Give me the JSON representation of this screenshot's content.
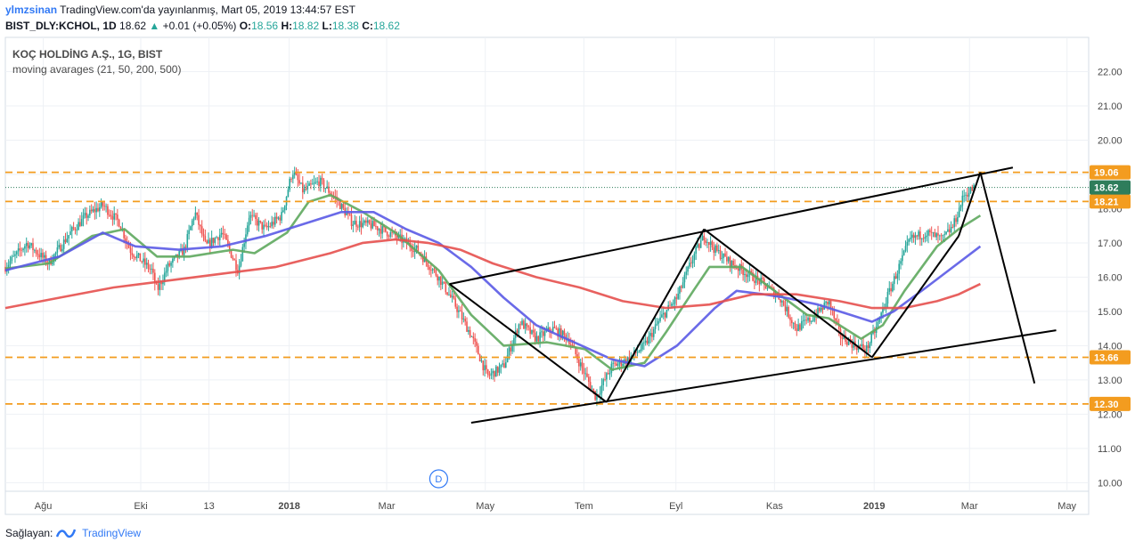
{
  "header": {
    "user": "ylmzsinan",
    "published": "TradingView.com'da yayınlanmış, Mart 05, 2019 13:44:57 EST",
    "symbol": "BIST_DLY:KCHOL, 1D",
    "last": "18.62",
    "change": "+0.01 (+0.05%)",
    "o_label": "O:",
    "o": "18.56",
    "h_label": "H:",
    "h": "18.82",
    "l_label": "L:",
    "l": "18.38",
    "c_label": "C:",
    "c": "18.62"
  },
  "legend": {
    "title": "KOÇ HOLDİNG A.Ş., 1G, BIST",
    "indicator": "moving avarages (21, 50, 200, 500)"
  },
  "footer": {
    "label": "Sağlayan:",
    "brand": "TradingView"
  },
  "colors": {
    "up": "#26a69a",
    "down": "#ef5350",
    "ma21": "#5ea85e",
    "ma50": "#5a5ae6",
    "ma200": "#e6504e",
    "level": "#f39c1f",
    "price_tag": "#2e7d5b",
    "trend": "#000000"
  },
  "chart_data": {
    "type": "candlestick",
    "y_axis": {
      "range": [
        9.75,
        23.0
      ],
      "ticks": [
        "10.00",
        "11.00",
        "12.00",
        "13.00",
        "14.00",
        "15.00",
        "16.00",
        "17.00",
        "18.00",
        "19.00",
        "20.00",
        "21.00",
        "22.00"
      ]
    },
    "x_axis": {
      "labels": [
        {
          "t": 0.035,
          "label": "Ağu",
          "bold": false
        },
        {
          "t": 0.125,
          "label": "Eki",
          "bold": false
        },
        {
          "t": 0.188,
          "label": "13",
          "bold": false
        },
        {
          "t": 0.262,
          "label": "2018",
          "bold": true
        },
        {
          "t": 0.352,
          "label": "Mar",
          "bold": false
        },
        {
          "t": 0.443,
          "label": "May",
          "bold": false
        },
        {
          "t": 0.534,
          "label": "Tem",
          "bold": false
        },
        {
          "t": 0.619,
          "label": "Eyl",
          "bold": false
        },
        {
          "t": 0.71,
          "label": "Kas",
          "bold": false
        },
        {
          "t": 0.802,
          "label": "2019",
          "bold": true
        },
        {
          "t": 0.89,
          "label": "Mar",
          "bold": false
        },
        {
          "t": 0.98,
          "label": "May",
          "bold": false
        }
      ]
    },
    "price_path": [
      [
        0.0,
        16.3
      ],
      [
        0.02,
        17.0
      ],
      [
        0.04,
        16.4
      ],
      [
        0.06,
        17.3
      ],
      [
        0.075,
        17.8
      ],
      [
        0.09,
        18.1
      ],
      [
        0.105,
        17.6
      ],
      [
        0.115,
        16.8
      ],
      [
        0.125,
        16.5
      ],
      [
        0.135,
        16.2
      ],
      [
        0.14,
        15.6
      ],
      [
        0.15,
        16.3
      ],
      [
        0.165,
        16.8
      ],
      [
        0.175,
        17.9
      ],
      [
        0.185,
        16.9
      ],
      [
        0.2,
        17.3
      ],
      [
        0.215,
        16.2
      ],
      [
        0.225,
        17.8
      ],
      [
        0.24,
        17.4
      ],
      [
        0.255,
        17.8
      ],
      [
        0.265,
        19.1
      ],
      [
        0.275,
        18.5
      ],
      [
        0.29,
        18.8
      ],
      [
        0.305,
        18.3
      ],
      [
        0.32,
        17.6
      ],
      [
        0.34,
        17.5
      ],
      [
        0.36,
        17.2
      ],
      [
        0.38,
        16.8
      ],
      [
        0.4,
        16.0
      ],
      [
        0.415,
        15.2
      ],
      [
        0.43,
        14.3
      ],
      [
        0.445,
        13.1
      ],
      [
        0.46,
        13.4
      ],
      [
        0.475,
        14.7
      ],
      [
        0.49,
        14.2
      ],
      [
        0.505,
        14.5
      ],
      [
        0.52,
        14.2
      ],
      [
        0.53,
        13.5
      ],
      [
        0.545,
        12.5
      ],
      [
        0.56,
        13.4
      ],
      [
        0.575,
        13.6
      ],
      [
        0.59,
        14.0
      ],
      [
        0.605,
        14.8
      ],
      [
        0.62,
        15.4
      ],
      [
        0.635,
        16.6
      ],
      [
        0.645,
        17.2
      ],
      [
        0.655,
        16.8
      ],
      [
        0.67,
        16.4
      ],
      [
        0.685,
        16.1
      ],
      [
        0.7,
        15.8
      ],
      [
        0.715,
        15.4
      ],
      [
        0.73,
        14.5
      ],
      [
        0.745,
        14.8
      ],
      [
        0.76,
        15.3
      ],
      [
        0.77,
        14.3
      ],
      [
        0.785,
        14.0
      ],
      [
        0.795,
        13.9
      ],
      [
        0.805,
        14.6
      ],
      [
        0.815,
        15.5
      ],
      [
        0.825,
        16.3
      ],
      [
        0.835,
        17.1
      ],
      [
        0.85,
        17.3
      ],
      [
        0.865,
        17.1
      ],
      [
        0.875,
        17.5
      ],
      [
        0.885,
        18.4
      ],
      [
        0.895,
        18.62
      ]
    ],
    "moving_averages": [
      {
        "name": "21",
        "color_key": "ma21",
        "points": [
          [
            0.0,
            16.25
          ],
          [
            0.04,
            16.4
          ],
          [
            0.08,
            17.2
          ],
          [
            0.11,
            17.4
          ],
          [
            0.14,
            16.6
          ],
          [
            0.17,
            16.6
          ],
          [
            0.21,
            16.8
          ],
          [
            0.23,
            16.7
          ],
          [
            0.26,
            17.3
          ],
          [
            0.28,
            18.2
          ],
          [
            0.3,
            18.4
          ],
          [
            0.33,
            17.9
          ],
          [
            0.36,
            17.3
          ],
          [
            0.4,
            16.2
          ],
          [
            0.43,
            14.9
          ],
          [
            0.46,
            14.0
          ],
          [
            0.5,
            14.1
          ],
          [
            0.535,
            13.9
          ],
          [
            0.56,
            13.3
          ],
          [
            0.59,
            13.5
          ],
          [
            0.61,
            14.4
          ],
          [
            0.635,
            15.6
          ],
          [
            0.65,
            16.3
          ],
          [
            0.68,
            16.3
          ],
          [
            0.71,
            15.6
          ],
          [
            0.74,
            14.9
          ],
          [
            0.76,
            14.8
          ],
          [
            0.79,
            14.2
          ],
          [
            0.81,
            14.6
          ],
          [
            0.83,
            15.6
          ],
          [
            0.86,
            16.9
          ],
          [
            0.88,
            17.4
          ],
          [
            0.9,
            17.8
          ]
        ]
      },
      {
        "name": "50",
        "color_key": "ma50",
        "points": [
          [
            0.0,
            16.2
          ],
          [
            0.05,
            16.6
          ],
          [
            0.09,
            17.3
          ],
          [
            0.12,
            16.9
          ],
          [
            0.16,
            16.8
          ],
          [
            0.2,
            16.9
          ],
          [
            0.24,
            17.2
          ],
          [
            0.27,
            17.5
          ],
          [
            0.31,
            17.9
          ],
          [
            0.34,
            17.9
          ],
          [
            0.37,
            17.4
          ],
          [
            0.4,
            17.0
          ],
          [
            0.43,
            16.3
          ],
          [
            0.46,
            15.4
          ],
          [
            0.49,
            14.6
          ],
          [
            0.525,
            14.1
          ],
          [
            0.56,
            13.6
          ],
          [
            0.59,
            13.4
          ],
          [
            0.62,
            14.0
          ],
          [
            0.655,
            15.1
          ],
          [
            0.675,
            15.6
          ],
          [
            0.7,
            15.5
          ],
          [
            0.72,
            15.4
          ],
          [
            0.75,
            15.2
          ],
          [
            0.78,
            14.9
          ],
          [
            0.8,
            14.7
          ],
          [
            0.82,
            15.0
          ],
          [
            0.85,
            15.7
          ],
          [
            0.875,
            16.3
          ],
          [
            0.9,
            16.9
          ]
        ]
      },
      {
        "name": "200",
        "color_key": "ma200",
        "points": [
          [
            0.0,
            15.1
          ],
          [
            0.05,
            15.4
          ],
          [
            0.1,
            15.7
          ],
          [
            0.15,
            15.9
          ],
          [
            0.2,
            16.1
          ],
          [
            0.25,
            16.3
          ],
          [
            0.3,
            16.7
          ],
          [
            0.33,
            17.0
          ],
          [
            0.36,
            17.1
          ],
          [
            0.39,
            17.0
          ],
          [
            0.42,
            16.8
          ],
          [
            0.45,
            16.4
          ],
          [
            0.49,
            16.0
          ],
          [
            0.53,
            15.7
          ],
          [
            0.57,
            15.3
          ],
          [
            0.61,
            15.1
          ],
          [
            0.65,
            15.2
          ],
          [
            0.69,
            15.5
          ],
          [
            0.73,
            15.5
          ],
          [
            0.77,
            15.3
          ],
          [
            0.8,
            15.1
          ],
          [
            0.83,
            15.1
          ],
          [
            0.86,
            15.3
          ],
          [
            0.88,
            15.5
          ],
          [
            0.9,
            15.8
          ]
        ]
      }
    ],
    "levels": [
      {
        "value": 19.06,
        "label": "19.06"
      },
      {
        "value": 18.21,
        "label": "18.21"
      },
      {
        "value": 13.66,
        "label": "13.66"
      },
      {
        "value": 12.3,
        "label": "12.30"
      }
    ],
    "current_price": {
      "value": 18.62,
      "label": "18.62"
    },
    "trend_lines": [
      [
        [
          0.41,
          15.8
        ],
        [
          0.93,
          19.2
        ]
      ],
      [
        [
          0.43,
          11.75
        ],
        [
          0.97,
          14.45
        ]
      ],
      [
        [
          0.41,
          15.8
        ],
        [
          0.555,
          12.35
        ]
      ],
      [
        [
          0.555,
          12.35
        ],
        [
          0.645,
          17.4
        ]
      ],
      [
        [
          0.645,
          17.4
        ],
        [
          0.8,
          13.66
        ]
      ],
      [
        [
          0.8,
          13.66
        ],
        [
          0.88,
          17.2
        ]
      ],
      [
        [
          0.88,
          17.2
        ],
        [
          0.9,
          19.06
        ]
      ],
      [
        [
          0.9,
          19.06
        ],
        [
          0.95,
          12.9
        ]
      ]
    ],
    "event_marker": {
      "t": 0.4,
      "label": "D"
    }
  }
}
